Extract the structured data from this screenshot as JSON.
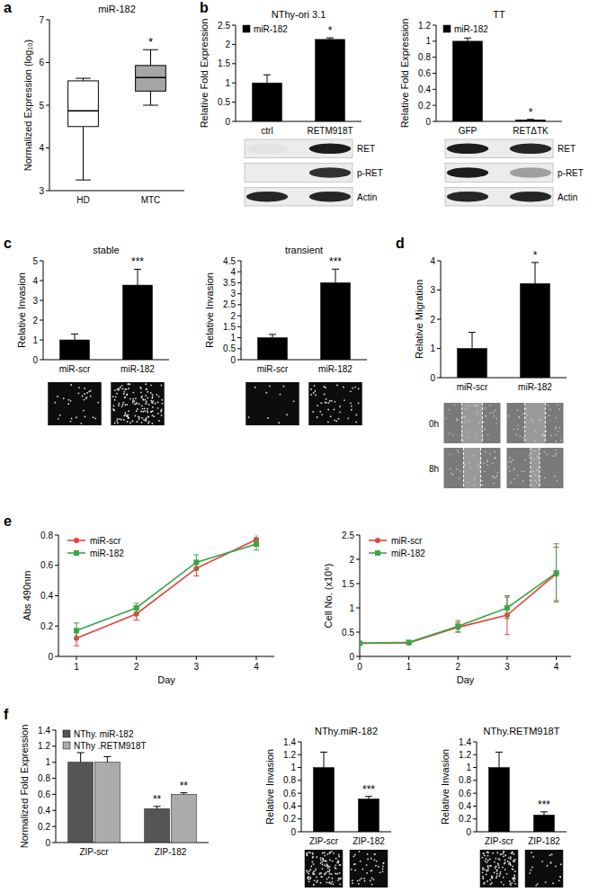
{
  "chart_data": [
    {
      "type": "box",
      "panel_label": "a",
      "title": "miR-182",
      "y_label": "Normalized Expression (log₁₀)",
      "categories": [
        "HD",
        "MTC"
      ],
      "stats": [
        {
          "min": 3.25,
          "q1": 4.5,
          "median": 4.87,
          "q3": 5.57,
          "max": 5.63
        },
        {
          "min": 5.0,
          "q1": 5.33,
          "median": 5.65,
          "q3": 5.93,
          "max": 6.3
        }
      ],
      "colors": [
        "#ffffff",
        "#a6a6a6"
      ],
      "significance": [
        null,
        "*"
      ],
      "ylim": [
        3,
        7
      ],
      "yticks": [
        3,
        4,
        5,
        6,
        7
      ]
    },
    {
      "type": "bar",
      "panel_label": "b",
      "title": "NThy-ori 3.1",
      "y_label": "Relative Fold Expression",
      "categories": [
        "ctrl",
        "RETM918T"
      ],
      "series": [
        {
          "name": "miR-182",
          "color": "#000000",
          "values": [
            1,
            2.13
          ],
          "errors": [
            0.21,
            0.04
          ],
          "significance": [
            null,
            "*"
          ]
        }
      ],
      "legend": "upper left",
      "ylim": [
        0,
        2.5
      ],
      "yticks": [
        0,
        0.5,
        1,
        1.5,
        2,
        2.5
      ],
      "blot_labels": [
        "RET",
        "p-RET",
        "Actin"
      ]
    },
    {
      "type": "bar",
      "title": "TT",
      "y_label": "Relative Fold Expression",
      "categories": [
        "GFP",
        "RETΔTK"
      ],
      "series": [
        {
          "name": "miR-182",
          "color": "#000000",
          "values": [
            1,
            0.02
          ],
          "errors": [
            0.04,
            0.005
          ],
          "significance": [
            null,
            "*"
          ]
        }
      ],
      "legend": "upper right",
      "ylim": [
        0,
        1.2
      ],
      "yticks": [
        0,
        0.2,
        0.4,
        0.6,
        0.8,
        1,
        1.2
      ],
      "blot_labels": [
        "RET",
        "p-RET",
        "Actin"
      ]
    },
    {
      "type": "bar",
      "panel_label": "c",
      "title": "stable",
      "y_label": "Relative Invasion",
      "categories": [
        "miR-scr",
        "miR-182"
      ],
      "series": [
        {
          "color": "#000000",
          "values": [
            1,
            3.77
          ],
          "errors": [
            0.3,
            0.8
          ],
          "significance": [
            null,
            "***"
          ]
        }
      ],
      "ylim": [
        0,
        5
      ],
      "yticks": [
        0,
        1,
        2,
        3,
        4,
        5
      ]
    },
    {
      "type": "bar",
      "title": "transient",
      "y_label": "Relative Invasion",
      "categories": [
        "miR-scr",
        "miR-182"
      ],
      "series": [
        {
          "color": "#000000",
          "values": [
            1,
            3.5
          ],
          "errors": [
            0.15,
            0.62
          ],
          "significance": [
            null,
            "***"
          ]
        }
      ],
      "ylim": [
        0,
        4.5
      ],
      "yticks": [
        0,
        0.5,
        1,
        1.5,
        2,
        2.5,
        3,
        3.5,
        4,
        4.5
      ]
    },
    {
      "type": "bar",
      "panel_label": "d",
      "y_label": "Relative Migration",
      "categories": [
        "miR-scr",
        "miR-182"
      ],
      "series": [
        {
          "color": "#000000",
          "values": [
            1,
            3.22
          ],
          "errors": [
            0.55,
            0.72
          ],
          "significance": [
            null,
            "*"
          ]
        }
      ],
      "ylim": [
        0,
        4
      ],
      "yticks": [
        0,
        1,
        2,
        3,
        4
      ],
      "image_labels": [
        "0h",
        "8h"
      ]
    },
    {
      "type": "line",
      "panel_label": "e",
      "x_label": "Day",
      "y_label": "Abs 490nm",
      "x": [
        1,
        2,
        3,
        4
      ],
      "xlim": [
        0.7,
        4.3
      ],
      "xticks": [
        1,
        2,
        3,
        4
      ],
      "ylim": [
        0,
        0.8
      ],
      "yticks": [
        0,
        0.2,
        0.4,
        0.6,
        0.8
      ],
      "legend": "upper left",
      "series": [
        {
          "name": "miR-scr",
          "color": "#e8413c",
          "marker": "circle",
          "values": [
            0.12,
            0.28,
            0.58,
            0.77
          ],
          "errors": [
            0.05,
            0.04,
            0.05,
            0.04
          ]
        },
        {
          "name": "miR-182",
          "color": "#3aa64a",
          "marker": "square",
          "values": [
            0.17,
            0.32,
            0.62,
            0.74
          ],
          "errors": [
            0.05,
            0.03,
            0.05,
            0.04
          ]
        }
      ]
    },
    {
      "type": "line",
      "x_label": "Day",
      "y_label": "Cell No. (x10⁶)",
      "x": [
        0,
        1,
        2,
        3,
        4
      ],
      "xlim": [
        0,
        4.3
      ],
      "xticks": [
        0,
        1,
        2,
        3,
        4
      ],
      "ylim": [
        0,
        2.5
      ],
      "yticks": [
        0,
        0.5,
        1,
        1.5,
        2,
        2.5
      ],
      "legend": "upper left",
      "series": [
        {
          "name": "miR-scr",
          "color": "#e8413c",
          "marker": "circle",
          "values": [
            0.27,
            0.28,
            0.6,
            0.85,
            1.7
          ],
          "errors": [
            0,
            0.02,
            0.1,
            0.4,
            0.55
          ]
        },
        {
          "name": "miR-182",
          "color": "#3aa64a",
          "marker": "square",
          "values": [
            0.27,
            0.29,
            0.62,
            1.0,
            1.72
          ],
          "errors": [
            0,
            0.02,
            0.12,
            0.22,
            0.6
          ]
        }
      ]
    },
    {
      "type": "bar",
      "panel_label": "f",
      "y_label": "Normalized Fold Expression",
      "categories": [
        "ZIP-scr",
        "ZIP-182"
      ],
      "series": [
        {
          "name": "NThy. miR-182",
          "color": "#555555",
          "values": [
            1,
            0.42
          ],
          "errors": [
            0.12,
            0.03
          ],
          "significance": [
            null,
            "**"
          ]
        },
        {
          "name": "NThy .RETM918T",
          "color": "#ababab",
          "values": [
            1,
            0.6
          ],
          "errors": [
            0.07,
            0.02
          ],
          "significance": [
            null,
            "**"
          ]
        }
      ],
      "legend": "upper left",
      "ylim": [
        0,
        1.4
      ],
      "yticks": [
        0,
        0.2,
        0.4,
        0.6,
        0.8,
        1,
        1.2,
        1.4
      ]
    },
    {
      "type": "bar",
      "title": "NThy.miR-182",
      "y_label": "Relative Invasion",
      "categories": [
        "ZIP-scr",
        "ZIP-182"
      ],
      "series": [
        {
          "color": "#000000",
          "values": [
            1,
            0.51
          ],
          "errors": [
            0.24,
            0.04
          ],
          "significance": [
            null,
            "***"
          ]
        }
      ],
      "ylim": [
        0,
        1.4
      ],
      "yticks": [
        0,
        0.2,
        0.4,
        0.6,
        0.8,
        1,
        1.2,
        1.4
      ]
    },
    {
      "type": "bar",
      "title": "NThy.RETM918T",
      "y_label": "Relative Invasion",
      "categories": [
        "ZIP-scr",
        "ZIP-182"
      ],
      "series": [
        {
          "color": "#000000",
          "values": [
            1,
            0.26
          ],
          "errors": [
            0.24,
            0.05
          ],
          "significance": [
            null,
            "***"
          ]
        }
      ],
      "ylim": [
        0,
        1.4
      ],
      "yticks": [
        0,
        0.2,
        0.4,
        0.6,
        0.8,
        1,
        1.2,
        1.4
      ]
    }
  ]
}
